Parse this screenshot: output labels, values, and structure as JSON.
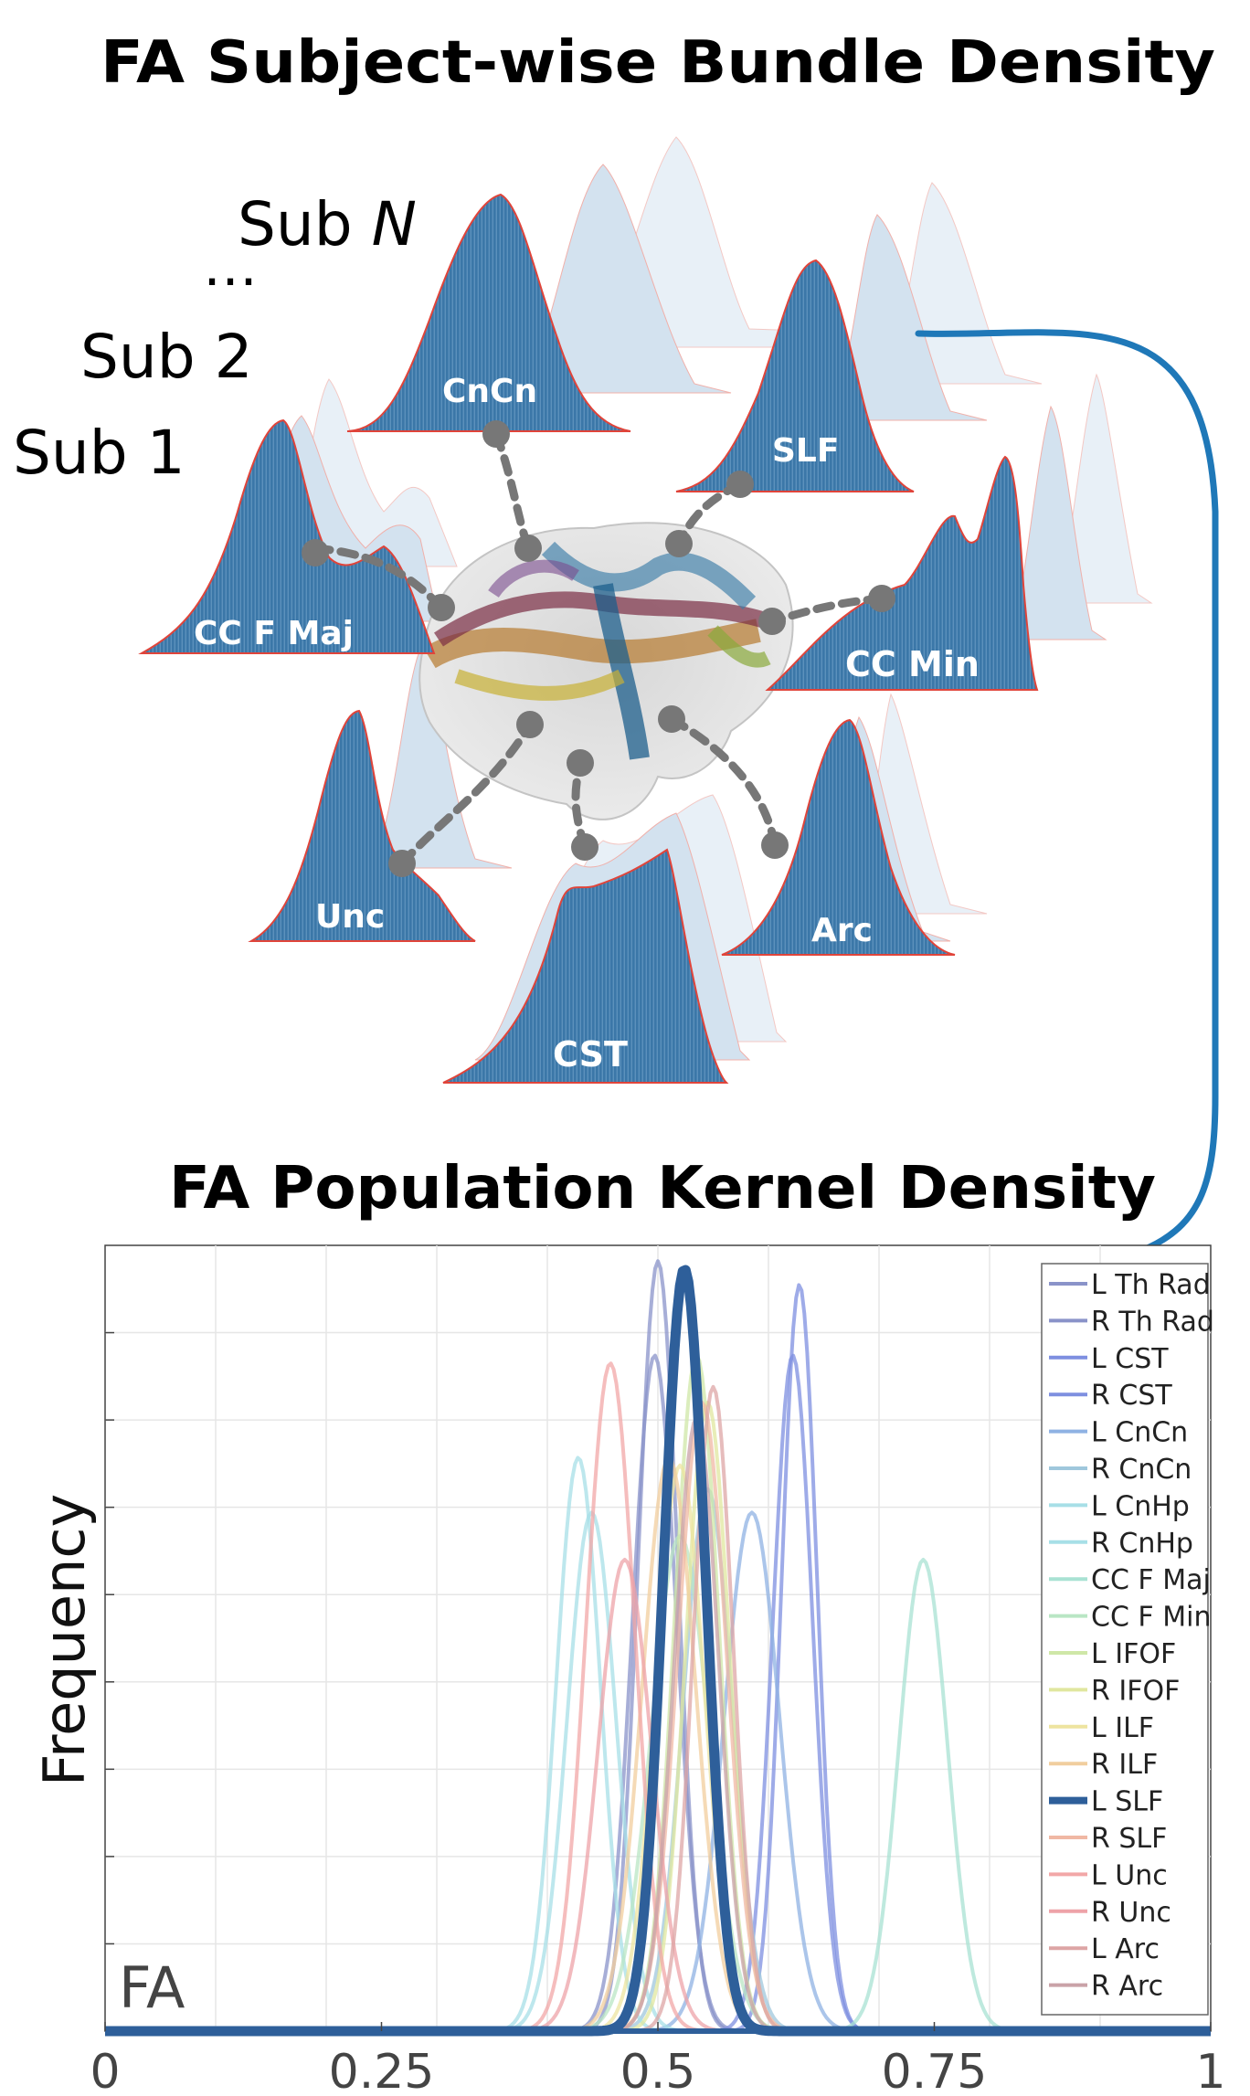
{
  "top_panel": {
    "title": "FA Subject-wise Bundle Density",
    "subjects": [
      "Sub 1",
      "Sub 2",
      "…",
      "Sub "
    ],
    "subject_n_italic": "N",
    "bundles": [
      "CnCn",
      "SLF",
      "CC F Maj",
      "CC Min",
      "Unc",
      "Arc",
      "CST"
    ],
    "colors": {
      "bar_fill": "#3b77a8",
      "outline": "#e0443a",
      "connector": "#777777",
      "arrow": "#1f78b8"
    }
  },
  "chart_data": {
    "type": "line",
    "title": "FA Population Kernel Density",
    "xlabel": "",
    "ylabel": "Frequency",
    "annotation": "FA",
    "xlim": [
      0,
      1
    ],
    "ylim": [
      0,
      1
    ],
    "xticks": [
      "0",
      "0.25",
      "0.5",
      "0.75",
      "1"
    ],
    "highlight_series": "L SLF",
    "series": [
      {
        "name": "L Th Rad",
        "color": "#8a93c9",
        "peak": 0.5,
        "sd": 0.018,
        "height": 0.98
      },
      {
        "name": "R Th Rad",
        "color": "#8a93c9",
        "peak": 0.497,
        "sd": 0.02,
        "height": 0.86
      },
      {
        "name": "L CST",
        "color": "#7e8fe0",
        "peak": 0.628,
        "sd": 0.016,
        "height": 0.95
      },
      {
        "name": "R CST",
        "color": "#7e8fe0",
        "peak": 0.622,
        "sd": 0.018,
        "height": 0.86
      },
      {
        "name": "L CnCn",
        "color": "#8fb2e3",
        "peak": 0.585,
        "sd": 0.025,
        "height": 0.66
      },
      {
        "name": "R CnCn",
        "color": "#9fc7dc",
        "peak": 0.545,
        "sd": 0.022,
        "height": 0.69
      },
      {
        "name": "L CnHp",
        "color": "#a7dfe7",
        "peak": 0.428,
        "sd": 0.02,
        "height": 0.73
      },
      {
        "name": "R CnHp",
        "color": "#a7dfe7",
        "peak": 0.44,
        "sd": 0.022,
        "height": 0.66
      },
      {
        "name": "CC F Maj",
        "color": "#a8e2d3",
        "peak": 0.74,
        "sd": 0.022,
        "height": 0.6
      },
      {
        "name": "CC F Min",
        "color": "#b9e6c4",
        "peak": 0.52,
        "sd": 0.026,
        "height": 0.63
      },
      {
        "name": "L IFOF",
        "color": "#cfe7a7",
        "peak": 0.535,
        "sd": 0.02,
        "height": 0.86
      },
      {
        "name": "R IFOF",
        "color": "#e0e79f",
        "peak": 0.545,
        "sd": 0.02,
        "height": 0.8
      },
      {
        "name": "L ILF",
        "color": "#eee4a0",
        "peak": 0.52,
        "sd": 0.022,
        "height": 0.72
      },
      {
        "name": "R ILF",
        "color": "#f1ce9e",
        "peak": 0.51,
        "sd": 0.024,
        "height": 0.73
      },
      {
        "name": "L SLF",
        "color": "#2e5f9a",
        "peak": 0.524,
        "sd": 0.019,
        "height": 0.97
      },
      {
        "name": "R SLF",
        "color": "#f0b8a4",
        "peak": 0.54,
        "sd": 0.022,
        "height": 0.8
      },
      {
        "name": "L Unc",
        "color": "#f2a7a7",
        "peak": 0.457,
        "sd": 0.022,
        "height": 0.85
      },
      {
        "name": "R Unc",
        "color": "#eea3a8",
        "peak": 0.47,
        "sd": 0.024,
        "height": 0.6
      },
      {
        "name": "L Arc",
        "color": "#dda5a5",
        "peak": 0.55,
        "sd": 0.018,
        "height": 0.82
      },
      {
        "name": "R Arc",
        "color": "#c9a2a8",
        "peak": 0.535,
        "sd": 0.02,
        "height": 0.78
      }
    ]
  }
}
